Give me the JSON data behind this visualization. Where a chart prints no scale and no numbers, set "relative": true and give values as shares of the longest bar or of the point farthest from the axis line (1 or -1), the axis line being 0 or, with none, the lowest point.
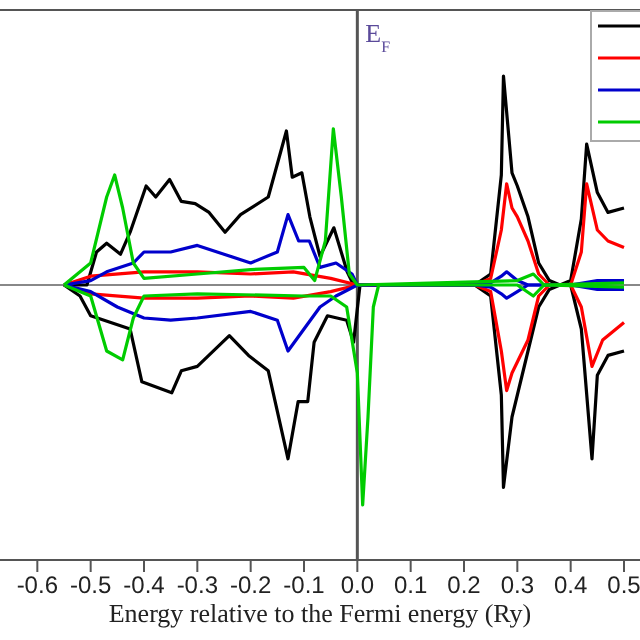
{
  "chart_data": {
    "type": "line",
    "relative": true,
    "xlabel": "Energy relative to the Fermi energy (Ry)",
    "xlim": [
      -0.67,
      0.53
    ],
    "xticks": [
      {
        "value": -0.6,
        "label": "-0.6"
      },
      {
        "value": -0.5,
        "label": "-0.5"
      },
      {
        "value": -0.4,
        "label": "-0.4"
      },
      {
        "value": -0.3,
        "label": "-0.3"
      },
      {
        "value": -0.2,
        "label": "-0.2"
      },
      {
        "value": -0.1,
        "label": "-0.1"
      },
      {
        "value": 0,
        "label": "0.0"
      },
      {
        "value": 0.1,
        "label": "0.1"
      },
      {
        "value": 0.2,
        "label": "0.2"
      },
      {
        "value": 0.3,
        "label": "0.3"
      },
      {
        "value": 0.4,
        "label": "0.4"
      },
      {
        "value": 0.5,
        "label": "0.5"
      }
    ],
    "tick_labels": "x",
    "legend": "top right",
    "marker": "none",
    "line_style": "solid",
    "ref_lines": [
      {
        "axis": "x",
        "value": 0,
        "label": "E$_{F}$",
        "color": "#555555"
      }
    ],
    "series": [
      {
        "color": "#000000",
        "x": [
          -0.55,
          -0.507,
          -0.489,
          -0.47,
          -0.444,
          -0.426,
          -0.396,
          -0.378,
          -0.352,
          -0.33,
          -0.304,
          -0.278,
          -0.248,
          -0.219,
          -0.167,
          -0.133,
          -0.122,
          -0.104,
          -0.089,
          -0.07,
          -0.044,
          -0.019,
          -0.007,
          0.22,
          0.25,
          0.27,
          0.274,
          0.29,
          0.3,
          0.32,
          0.34,
          0.36,
          0.38,
          0.4,
          0.42,
          0.43,
          0.45,
          0.47,
          0.5
        ],
        "values": [
          0,
          0,
          0.15,
          0.19,
          0.14,
          0.24,
          0.45,
          0.4,
          0.48,
          0.38,
          0.37,
          0.33,
          0.24,
          0.32,
          0.4,
          0.7,
          0.49,
          0.51,
          0.31,
          0.13,
          0.26,
          0.06,
          0,
          0,
          0.05,
          0.5,
          0.95,
          0.51,
          0.45,
          0.31,
          0.1,
          0.02,
          0,
          0.02,
          0.3,
          0.64,
          0.42,
          0.33,
          0.35
        ]
      },
      {
        "color": "#000000",
        "x": [
          -0.55,
          -0.52,
          -0.5,
          -0.426,
          -0.404,
          -0.348,
          -0.33,
          -0.3,
          -0.24,
          -0.204,
          -0.167,
          -0.13,
          -0.111,
          -0.093,
          -0.081,
          -0.056,
          -0.02,
          -0.007,
          0.005,
          0.22,
          0.25,
          0.27,
          0.274,
          0.29,
          0.3,
          0.32,
          0.34,
          0.36,
          0.38,
          0.4,
          0.42,
          0.44,
          0.45,
          0.47,
          0.5
        ],
        "values": [
          0,
          -0.05,
          -0.14,
          -0.2,
          -0.44,
          -0.49,
          -0.39,
          -0.37,
          -0.23,
          -0.32,
          -0.39,
          -0.79,
          -0.53,
          -0.53,
          -0.26,
          -0.14,
          -0.16,
          -0.26,
          0,
          0,
          -0.05,
          -0.5,
          -0.92,
          -0.6,
          -0.5,
          -0.3,
          -0.1,
          -0.02,
          0,
          0,
          -0.2,
          -0.79,
          -0.41,
          -0.32,
          -0.3
        ]
      },
      {
        "color": "#ff0000",
        "x": [
          -0.55,
          -0.5,
          -0.4,
          -0.3,
          -0.2,
          -0.12,
          -0.05,
          0,
          0.22,
          0.25,
          0.27,
          0.28,
          0.29,
          0.3,
          0.32,
          0.34,
          0.36,
          0.4,
          0.42,
          0.43,
          0.45,
          0.47,
          0.5
        ],
        "values": [
          0,
          0.04,
          0.06,
          0.06,
          0.05,
          0.06,
          0.03,
          0,
          0,
          0.03,
          0.25,
          0.46,
          0.35,
          0.31,
          0.2,
          0.05,
          0,
          0,
          0.15,
          0.46,
          0.25,
          0.2,
          0.17
        ]
      },
      {
        "color": "#ff0000",
        "x": [
          -0.55,
          -0.5,
          -0.4,
          -0.3,
          -0.2,
          -0.12,
          -0.05,
          0,
          0.22,
          0.25,
          0.27,
          0.28,
          0.29,
          0.3,
          0.32,
          0.34,
          0.36,
          0.4,
          0.42,
          0.44,
          0.46,
          0.5
        ],
        "values": [
          0,
          -0.04,
          -0.06,
          -0.06,
          -0.05,
          -0.06,
          -0.03,
          0,
          0,
          -0.03,
          -0.3,
          -0.48,
          -0.4,
          -0.35,
          -0.25,
          -0.05,
          0,
          0,
          -0.1,
          -0.37,
          -0.25,
          -0.17
        ]
      },
      {
        "color": "#0000cc",
        "x": [
          -0.55,
          -0.5,
          -0.47,
          -0.42,
          -0.4,
          -0.35,
          -0.3,
          -0.25,
          -0.2,
          -0.15,
          -0.13,
          -0.11,
          -0.09,
          -0.07,
          -0.04,
          -0.01,
          0,
          0.22,
          0.25,
          0.27,
          0.28,
          0.3,
          0.32,
          0.4,
          0.45,
          0.5
        ],
        "values": [
          0,
          0.02,
          0.06,
          0.1,
          0.15,
          0.15,
          0.18,
          0.14,
          0.1,
          0.15,
          0.32,
          0.2,
          0.2,
          0.08,
          0.1,
          0.05,
          0,
          0,
          0.01,
          0.04,
          0.06,
          0.02,
          0,
          0,
          0.02,
          0.02
        ]
      },
      {
        "color": "#0000cc",
        "x": [
          -0.55,
          -0.5,
          -0.45,
          -0.4,
          -0.35,
          -0.3,
          -0.2,
          -0.15,
          -0.13,
          -0.1,
          -0.07,
          -0.04,
          0,
          0.22,
          0.25,
          0.27,
          0.28,
          0.3,
          0.32,
          0.4,
          0.45,
          0.5
        ],
        "values": [
          0,
          -0.03,
          -0.1,
          -0.15,
          -0.16,
          -0.15,
          -0.12,
          -0.16,
          -0.3,
          -0.2,
          -0.1,
          -0.05,
          0,
          0,
          -0.01,
          -0.04,
          -0.06,
          -0.03,
          0,
          0,
          -0.02,
          -0.02
        ]
      },
      {
        "color": "#00cc00",
        "x": [
          -0.55,
          -0.5,
          -0.47,
          -0.455,
          -0.44,
          -0.42,
          -0.4,
          -0.3,
          -0.2,
          -0.1,
          -0.08,
          -0.06,
          -0.045,
          -0.03,
          -0.015,
          0,
          0.3,
          0.33,
          0.35,
          0.5
        ],
        "values": [
          0,
          0.1,
          0.4,
          0.5,
          0.35,
          0.1,
          0.03,
          0.05,
          0.07,
          0.08,
          0.02,
          0.2,
          0.71,
          0.4,
          0.05,
          0,
          0.02,
          0.05,
          0,
          0.01
        ]
      },
      {
        "color": "#00cc00",
        "x": [
          -0.55,
          -0.5,
          -0.47,
          -0.44,
          -0.42,
          -0.4,
          -0.3,
          -0.1,
          -0.05,
          -0.02,
          0,
          0.01,
          0.02,
          0.03,
          0.04,
          0.3,
          0.33,
          0.35,
          0.5
        ],
        "values": [
          0,
          -0.05,
          -0.3,
          -0.34,
          -0.15,
          -0.05,
          -0.04,
          -0.05,
          -0.05,
          -0.1,
          -0.4,
          -1,
          -0.6,
          -0.1,
          0,
          0,
          -0.05,
          0,
          -0.01
        ]
      }
    ]
  }
}
